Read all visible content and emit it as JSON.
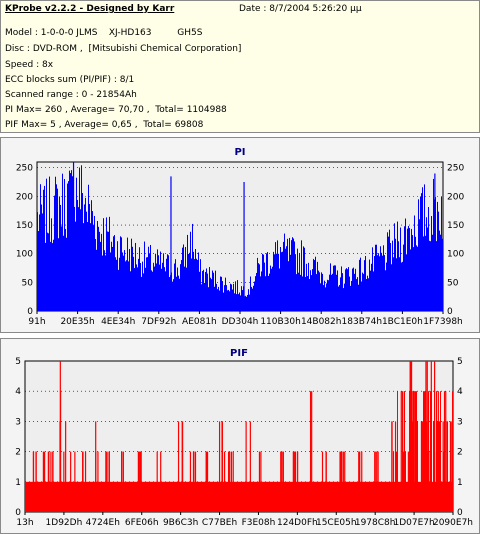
{
  "info": {
    "title": "KProbe v2.2.2 - Designed by Karr",
    "date": "Date : 8/7/2004 5:26:20 μμ",
    "model": "Model : 1-0-0-0 JLMS    XJ-HD163         GH5S",
    "disc": "Disc : DVD-ROM ,  [Mitsubishi Chemical Corporation]",
    "speed": "Speed : 8x",
    "ecc": "ECC blocks sum (PI/PIF) : 8/1",
    "range": "Scanned range : 0 - 21854Ah",
    "pi_stats": "PI Max= 260 , Average= 70,70 ,  Total= 1104988",
    "pif_stats": "PIF Max= 5 , Average= 0,65 ,  Total= 69808"
  },
  "chart_data": [
    {
      "type": "area",
      "title": "PI",
      "color": "#0000ff",
      "ylim": [
        0,
        260
      ],
      "yticks": [
        0,
        50,
        100,
        150,
        200,
        250
      ],
      "xticks": [
        "91h",
        "20E35h",
        "4EE34h",
        "7DF92h",
        "AE081h",
        "DD304h",
        "110B30h",
        "14B082h",
        "183B74h",
        "1BC1E0h",
        "1F7398h"
      ],
      "x": [
        0,
        2,
        5,
        8,
        10,
        15,
        20,
        25,
        30,
        35,
        38,
        40,
        45,
        50,
        52,
        55,
        60,
        65,
        70,
        75,
        80,
        85,
        90,
        95,
        100
      ],
      "values": [
        190,
        200,
        215,
        230,
        250,
        170,
        130,
        110,
        95,
        85,
        150,
        80,
        60,
        45,
        45,
        95,
        120,
        110,
        75,
        70,
        85,
        110,
        150,
        195,
        215
      ],
      "spikes": [
        {
          "x": 9,
          "value": 260
        },
        {
          "x": 33,
          "value": 235
        },
        {
          "x": 51,
          "value": 225
        },
        {
          "x": 98,
          "value": 240
        }
      ]
    },
    {
      "type": "bar",
      "title": "PIF",
      "color": "#ff0000",
      "ylim": [
        0,
        5
      ],
      "yticks": [
        0,
        1,
        2,
        3,
        4,
        5
      ],
      "xticks": [
        "13h",
        "1D92Dh",
        "4724Eh",
        "6FE06h",
        "9B6C3h",
        "C77BEh",
        "F3E08h",
        "124D0Fh",
        "15CE05h",
        "1978C8h",
        "1D07E7h",
        "2090E7h"
      ],
      "base": 1,
      "bursts": [
        {
          "x": 2,
          "value": 2
        },
        {
          "x": 4,
          "value": 2
        },
        {
          "x": 6,
          "value": 2
        },
        {
          "x": 8,
          "value": 5
        },
        {
          "x": 9,
          "value": 3
        },
        {
          "x": 11,
          "value": 2
        },
        {
          "x": 14,
          "value": 2
        },
        {
          "x": 17,
          "value": 3
        },
        {
          "x": 19,
          "value": 2
        },
        {
          "x": 23,
          "value": 2
        },
        {
          "x": 27,
          "value": 2
        },
        {
          "x": 31,
          "value": 2
        },
        {
          "x": 36,
          "value": 3
        },
        {
          "x": 39,
          "value": 2
        },
        {
          "x": 42,
          "value": 2
        },
        {
          "x": 46,
          "value": 3
        },
        {
          "x": 48,
          "value": 2
        },
        {
          "x": 52,
          "value": 3
        },
        {
          "x": 55,
          "value": 2
        },
        {
          "x": 60,
          "value": 2
        },
        {
          "x": 63,
          "value": 2
        },
        {
          "x": 67,
          "value": 4
        },
        {
          "x": 70,
          "value": 2
        },
        {
          "x": 74,
          "value": 2
        },
        {
          "x": 78,
          "value": 2
        },
        {
          "x": 82,
          "value": 2
        },
        {
          "x": 86,
          "value": 3
        },
        {
          "x": 88,
          "value": 4
        },
        {
          "x": 90,
          "value": 5
        },
        {
          "x": 91,
          "value": 4
        },
        {
          "x": 93,
          "value": 3
        },
        {
          "x": 94,
          "value": 5
        },
        {
          "x": 95,
          "value": 5
        },
        {
          "x": 96,
          "value": 4
        },
        {
          "x": 97,
          "value": 3
        },
        {
          "x": 98,
          "value": 4
        },
        {
          "x": 99,
          "value": 3
        }
      ]
    }
  ]
}
